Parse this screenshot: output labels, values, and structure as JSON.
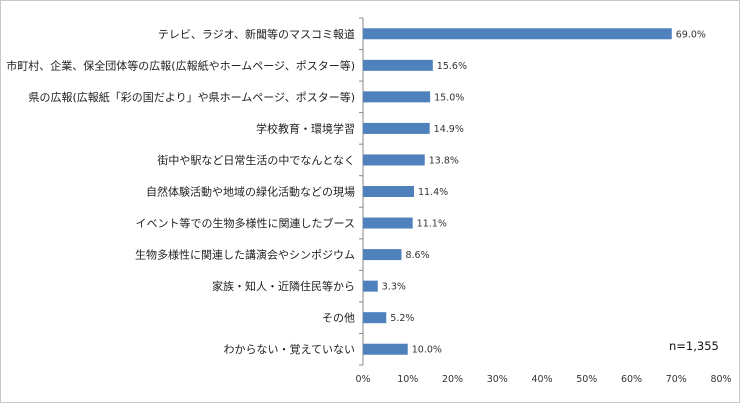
{
  "chart_data": {
    "type": "bar",
    "orientation": "horizontal",
    "categories": [
      "テレビ、ラジオ、新聞等のマスコミ報道",
      "国、市町村、企業、保全団体等の広報(広報紙やホームページ、ポスター等)",
      "県の広報(広報紙「彩の国だより」や県ホームページ、ポスター等)",
      "学校教育・環境学習",
      "街中や駅など日常生活の中でなんとなく",
      "自然体験活動や地域の緑化活動などの現場",
      "イベント等での生物多様性に関連したブース",
      "生物多様性に関連した講演会やシンポジウム",
      "家族・知人・近隣住民等から",
      "その他",
      "わからない・覚えていない"
    ],
    "values": [
      69.0,
      15.6,
      15.0,
      14.9,
      13.8,
      11.4,
      11.1,
      8.6,
      3.3,
      5.2,
      10.0
    ],
    "value_labels": [
      "69.0%",
      "15.6%",
      "15.0%",
      "14.9%",
      "13.8%",
      "11.4%",
      "11.1%",
      "8.6%",
      "3.3%",
      "5.2%",
      "10.0%"
    ],
    "xlim": [
      0,
      80
    ],
    "xticks": [
      "0%",
      "10%",
      "20%",
      "30%",
      "40%",
      "50%",
      "60%",
      "70%",
      "80%"
    ],
    "annotation": "n=1,355",
    "bar_color": "#4f81bd",
    "grid": false
  }
}
